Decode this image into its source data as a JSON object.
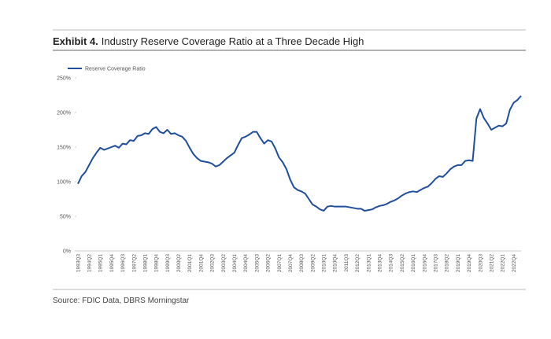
{
  "chart_data": {
    "type": "line",
    "exhibit": "Exhibit 4.",
    "title": "Industry Reserve Coverage Ratio at a Three Decade High",
    "source": "Source: FDIC Data, DBRS Morningstar",
    "legend": "top-left",
    "categories": [
      "1993Q3",
      null,
      null,
      "1994Q2",
      null,
      null,
      "1995Q1",
      null,
      null,
      "1995Q4",
      null,
      null,
      "1996Q3",
      null,
      null,
      "1997Q2",
      null,
      null,
      "1998Q1",
      null,
      null,
      "1998Q4",
      null,
      null,
      "1999Q3",
      null,
      null,
      "2000Q2",
      null,
      null,
      "2001Q1",
      null,
      null,
      "2001Q4",
      null,
      null,
      "2002Q3",
      null,
      null,
      "2003Q2",
      null,
      null,
      "2004Q1",
      null,
      null,
      "2004Q4",
      null,
      null,
      "2005Q3",
      null,
      null,
      "2006Q2",
      null,
      null,
      "2007Q1",
      null,
      null,
      "2007Q4",
      null,
      null,
      "2008Q3",
      null,
      null,
      "2009Q2",
      null,
      null,
      "2010Q1",
      null,
      null,
      "2010Q4",
      null,
      null,
      "2011Q3",
      null,
      null,
      "2012Q2",
      null,
      null,
      "2013Q1",
      null,
      null,
      "2013Q4",
      null,
      null,
      "2014Q3",
      null,
      null,
      "2015Q2",
      null,
      null,
      "2016Q1",
      null,
      null,
      "2016Q4",
      null,
      null,
      "2017Q3",
      null,
      null,
      "2018Q2",
      null,
      null,
      "2019Q1",
      null,
      null,
      "2019Q4",
      null,
      null,
      "2020Q3",
      null,
      null,
      "2021Q2",
      null,
      null,
      "2022Q1",
      null,
      null,
      "2022Q4",
      null,
      null
    ],
    "series": [
      {
        "name": "Reserve Coverage Ratio",
        "color": "#1f4e9c",
        "values": [
          97,
          108,
          114,
          124,
          134,
          142,
          149,
          146,
          148,
          150,
          152,
          149,
          155,
          154,
          160,
          159,
          166,
          167,
          170,
          169,
          176,
          179,
          172,
          170,
          175,
          169,
          170,
          167,
          165,
          159,
          149,
          140,
          134,
          130,
          129,
          128,
          126,
          122,
          124,
          129,
          134,
          138,
          142,
          153,
          163,
          165,
          168,
          172,
          172,
          163,
          155,
          160,
          158,
          148,
          135,
          128,
          118,
          103,
          92,
          88,
          86,
          83,
          75,
          67,
          64,
          60,
          58,
          64,
          65,
          64,
          64,
          64,
          64,
          63,
          62,
          61,
          61,
          58,
          59,
          60,
          63,
          65,
          66,
          68,
          71,
          73,
          76,
          80,
          83,
          85,
          86,
          85,
          88,
          91,
          93,
          98,
          104,
          108,
          107,
          112,
          118,
          122,
          124,
          124,
          130,
          131,
          130,
          191,
          205,
          192,
          184,
          175,
          178,
          181,
          180,
          184,
          204,
          214,
          218,
          224
        ]
      }
    ],
    "ylim": [
      0,
      250
    ],
    "yticks": [
      {
        "value": 0,
        "label": "0%"
      },
      {
        "value": 50,
        "label": "50%"
      },
      {
        "value": 100,
        "label": "100%"
      },
      {
        "value": 150,
        "label": "150%"
      },
      {
        "value": 200,
        "label": "200%"
      },
      {
        "value": 250,
        "label": "250%"
      }
    ],
    "grid": false
  }
}
